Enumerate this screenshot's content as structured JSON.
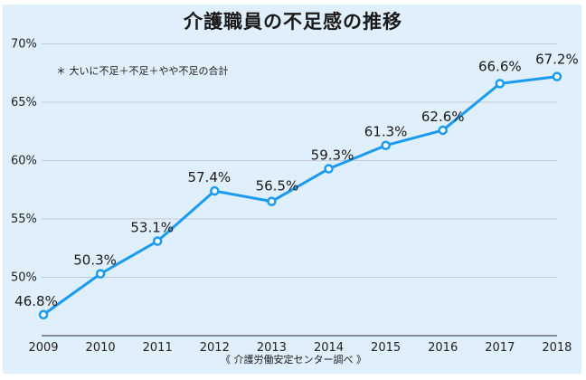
{
  "title": "介護職員の不足感の推移",
  "note": "＊ 大いに不足＋不足＋やや不足の合計",
  "source": "《 介護労働安定センター調べ 》",
  "colors": {
    "line": "#1a9bf0",
    "background": "#dfeffc",
    "grid": "#c4c8cc",
    "axis": "#6b6f73"
  },
  "chart_data": {
    "type": "line",
    "title": "介護職員の不足感の推移",
    "xlabel": "",
    "ylabel": "",
    "categories": [
      "2009",
      "2010",
      "2011",
      "2012",
      "2013",
      "2014",
      "2015",
      "2016",
      "2017",
      "2018"
    ],
    "series": [
      {
        "name": "介護職員の不足感",
        "values": [
          46.8,
          50.3,
          53.1,
          57.4,
          56.5,
          59.3,
          61.3,
          62.6,
          66.6,
          67.2
        ]
      }
    ],
    "data_labels": [
      "46.8%",
      "50.3%",
      "53.1%",
      "57.4%",
      "56.5%",
      "59.3%",
      "61.3%",
      "62.6%",
      "66.6%",
      "67.2%"
    ],
    "yticks": [
      50,
      55,
      60,
      65,
      70
    ],
    "ytick_labels": [
      "50%",
      "55%",
      "60%",
      "65%",
      "70%"
    ],
    "ylim": [
      45,
      70
    ],
    "grid": true,
    "legend": "none",
    "annotations": [
      "＊ 大いに不足＋不足＋やや不足の合計",
      "《 介護労働安定センター調べ 》"
    ]
  }
}
